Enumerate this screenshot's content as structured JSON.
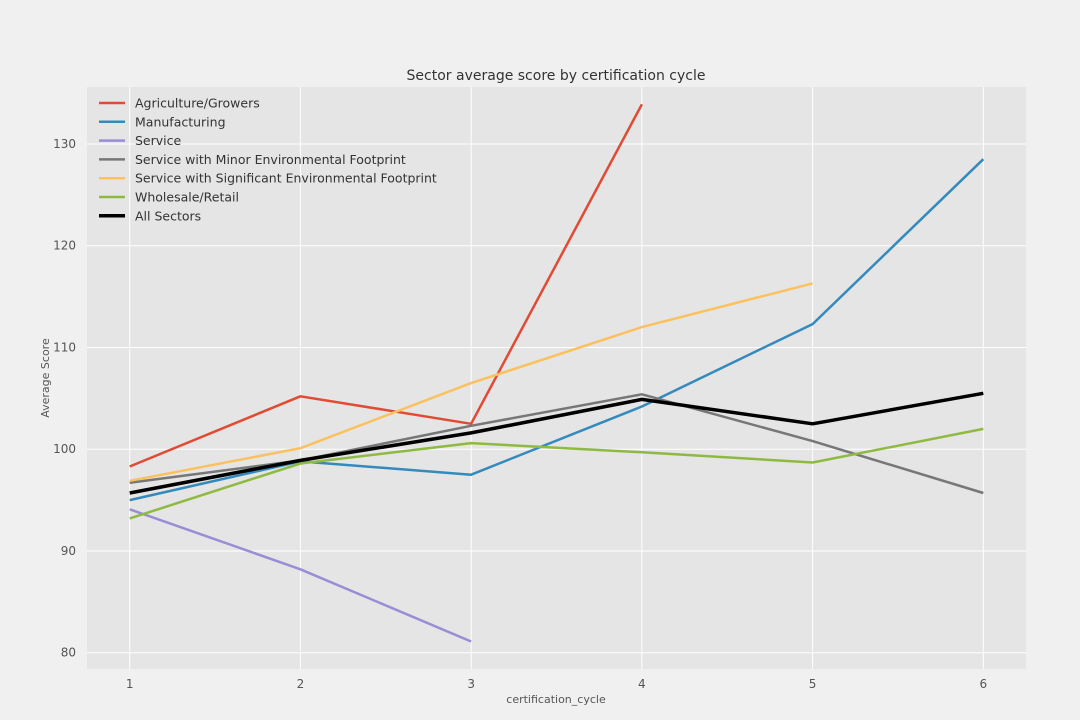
{
  "chart_data": {
    "type": "line",
    "title": "Sector average score by certification cycle",
    "xlabel": "certification_cycle",
    "ylabel": "Average Score",
    "x": [
      1,
      2,
      3,
      4,
      5,
      6
    ],
    "xlim": [
      0.75,
      6.25
    ],
    "ylim": [
      78.4,
      135.6
    ],
    "yticks": [
      80,
      90,
      100,
      110,
      120,
      130
    ],
    "grid": true,
    "legend_position": "top-left",
    "series": [
      {
        "name": "Agriculture/Growers",
        "color": "#e24a33",
        "values": [
          98.3,
          105.2,
          102.5,
          133.9,
          null,
          null
        ]
      },
      {
        "name": "Manufacturing",
        "color": "#348abd",
        "values": [
          95.0,
          98.8,
          97.5,
          104.2,
          112.3,
          128.5
        ]
      },
      {
        "name": "Service",
        "color": "#988ed5",
        "values": [
          94.1,
          88.2,
          81.1,
          null,
          null,
          null
        ]
      },
      {
        "name": "Service with Minor Environmental Footprint",
        "color": "#777777",
        "values": [
          96.7,
          98.9,
          102.3,
          105.4,
          100.8,
          95.7
        ]
      },
      {
        "name": "Service with Significant Environmental Footprint",
        "color": "#fbc15e",
        "values": [
          96.9,
          100.1,
          106.5,
          112.0,
          116.3,
          null
        ]
      },
      {
        "name": "Wholesale/Retail",
        "color": "#8eba42",
        "values": [
          93.2,
          98.6,
          100.6,
          99.7,
          98.7,
          102.0
        ]
      },
      {
        "name": "All Sectors",
        "color": "#000000",
        "values": [
          95.7,
          98.9,
          101.6,
          104.9,
          102.5,
          105.5
        ]
      }
    ]
  }
}
